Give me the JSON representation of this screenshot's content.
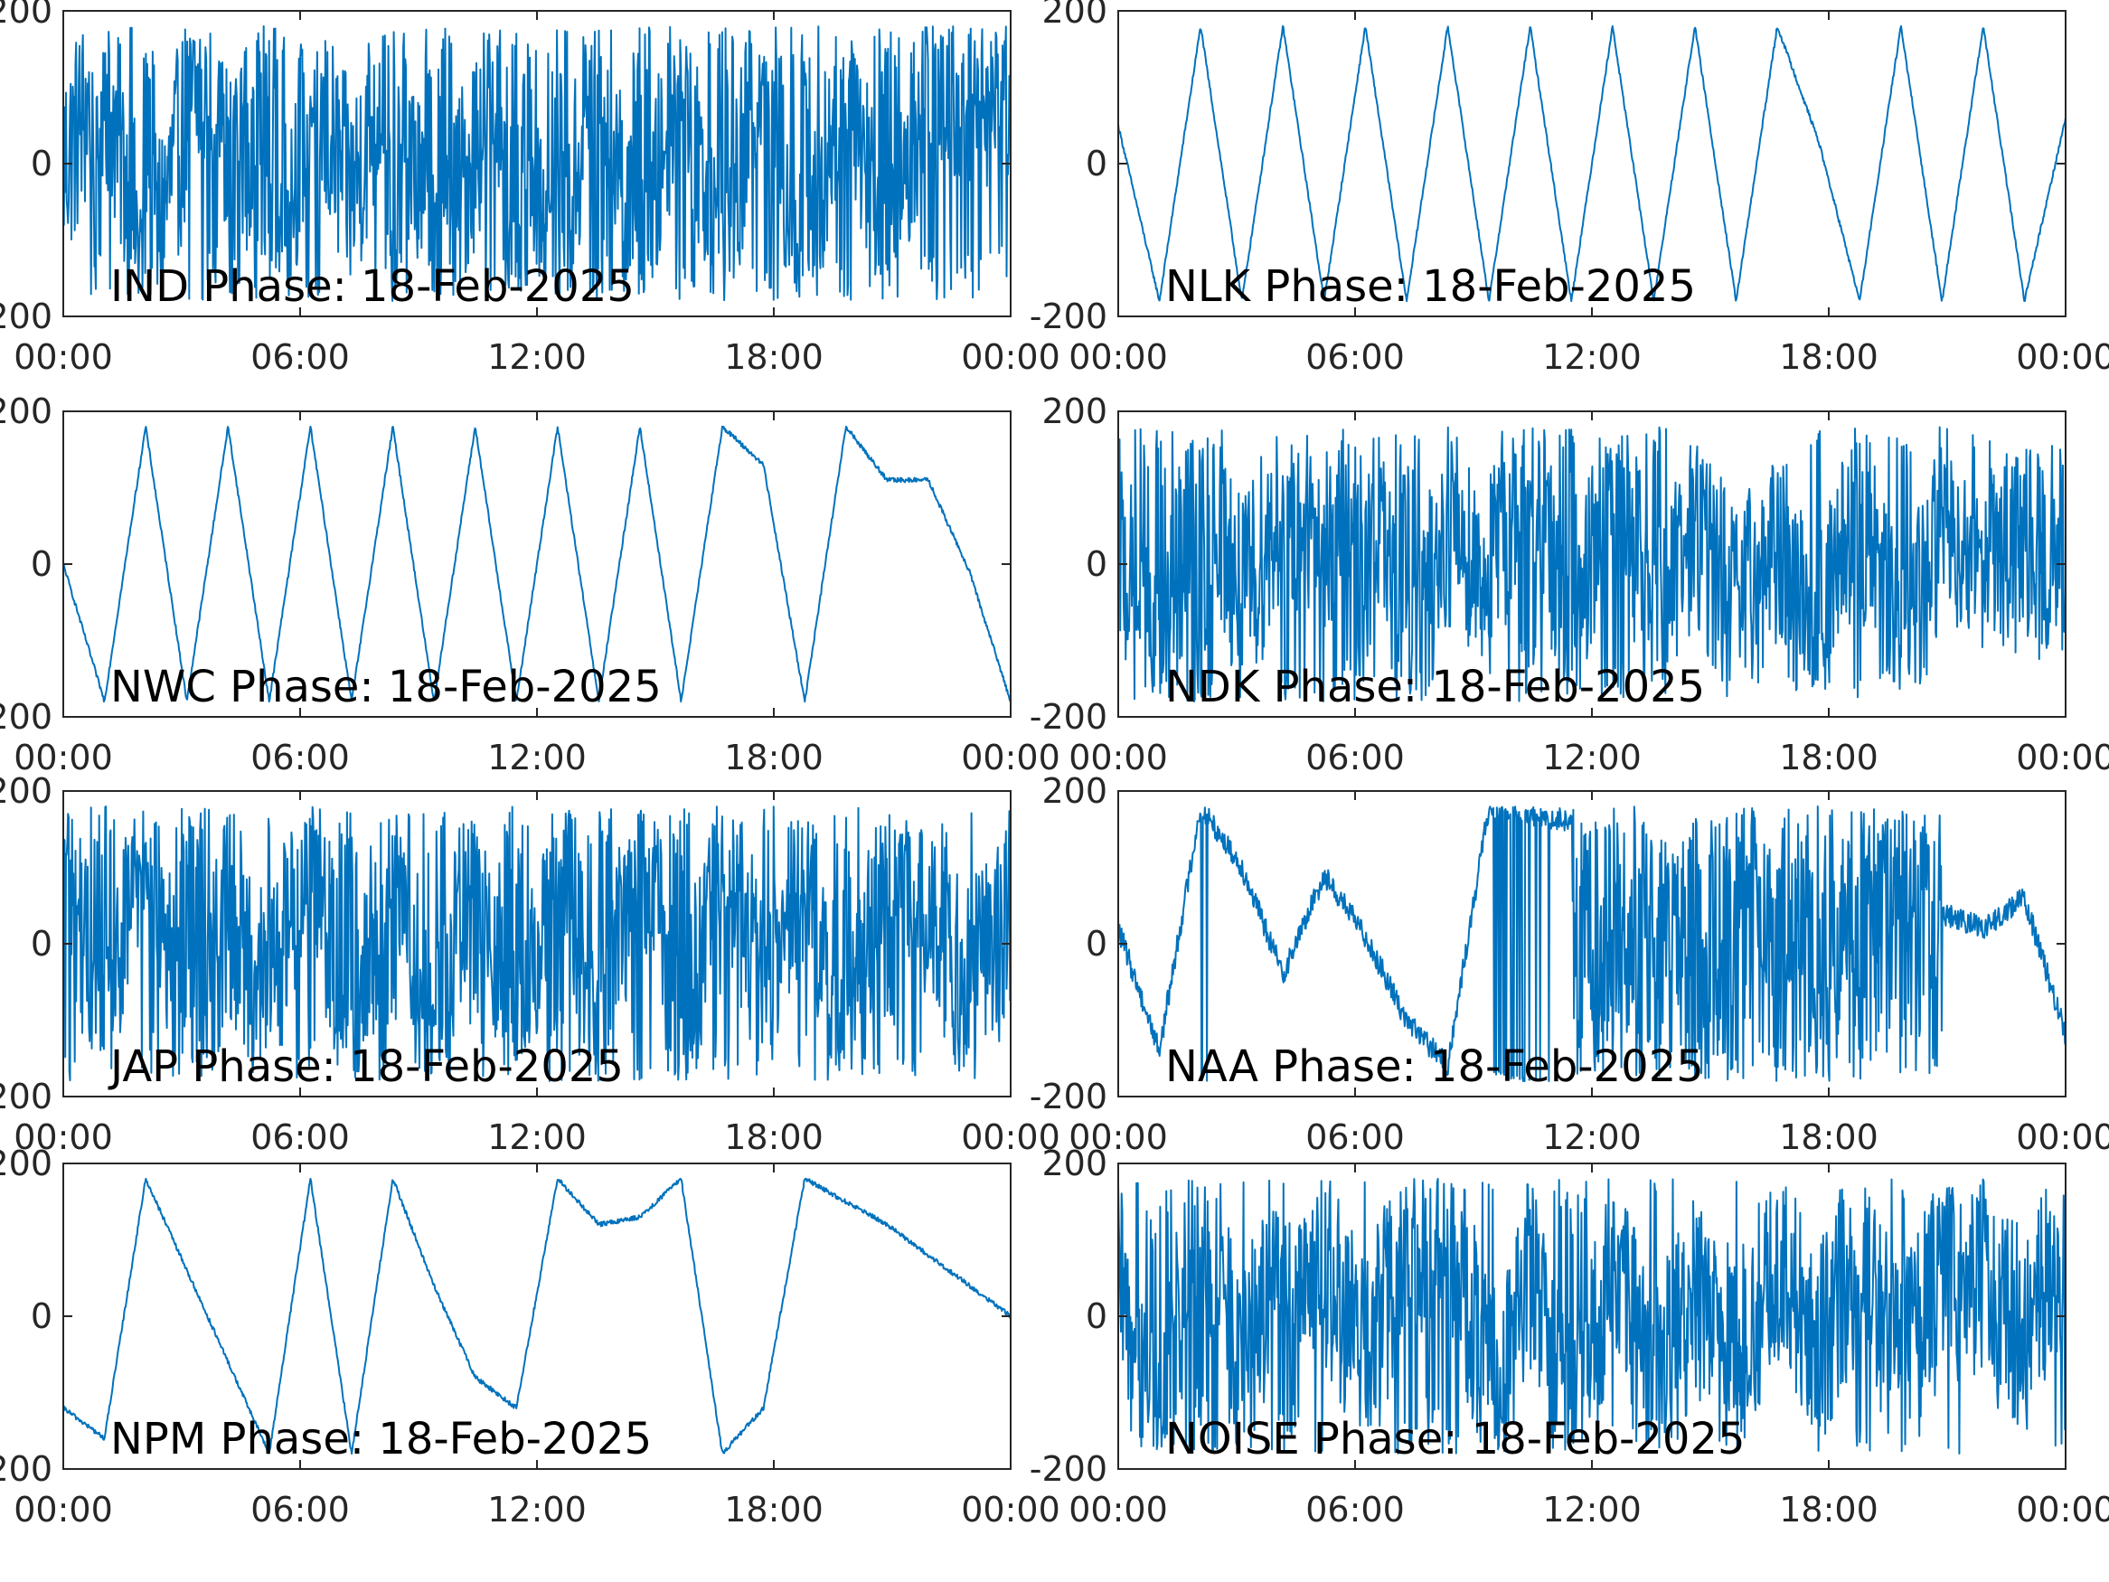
{
  "colors": {
    "line": "#0072BD",
    "axis": "#262626",
    "text": "#000000"
  },
  "chart_data": [
    {
      "type": "line",
      "position": "row1-left",
      "title": "IND Phase: 18-Feb-2025",
      "xlabel": "",
      "ylabel": "",
      "xlim": [
        "00:00",
        "24:00"
      ],
      "ylim": [
        -200,
        200
      ],
      "xticks": [
        "00:00",
        "06:00",
        "12:00",
        "18:00",
        "00:00"
      ],
      "yticks": [
        "-200",
        "0",
        "200"
      ],
      "series": [
        {
          "pattern": "noise-wrap",
          "values": [
            0,
            120,
            -150,
            60,
            170,
            -170,
            90,
            -40,
            160,
            -160,
            30,
            170,
            -170,
            175,
            -175,
            170,
            -170,
            175,
            -175,
            170,
            -170,
            160,
            100,
            120
          ]
        }
      ]
    },
    {
      "type": "line",
      "position": "row1-right",
      "title": "NLK Phase: 18-Feb-2025",
      "xlabel": "",
      "ylabel": "",
      "xlim": [
        "00:00",
        "24:00"
      ],
      "ylim": [
        -200,
        200
      ],
      "xticks": [
        "00:00",
        "06:00",
        "12:00",
        "18:00",
        "00:00"
      ],
      "yticks": [
        "-200",
        "0",
        "200"
      ],
      "series": [
        {
          "pattern": "sawtooth",
          "values": [
            50,
            -180,
            180,
            -180,
            180,
            -180,
            180,
            -180,
            180,
            -180,
            180,
            -180,
            180,
            -180,
            180,
            -180,
            180,
            30,
            -180,
            180,
            -180,
            180,
            -180,
            60
          ]
        }
      ]
    },
    {
      "type": "line",
      "position": "row2-left",
      "title": "NWC Phase: 18-Feb-2025",
      "xlabel": "",
      "ylabel": "",
      "xlim": [
        "00:00",
        "24:00"
      ],
      "ylim": [
        -200,
        200
      ],
      "xticks": [
        "00:00",
        "06:00",
        "12:00",
        "18:00",
        "00:00"
      ],
      "yticks": [
        "-200",
        "0",
        "200"
      ],
      "series": [
        {
          "pattern": "sawtooth",
          "values": [
            0,
            -180,
            180,
            -180,
            180,
            -180,
            180,
            -180,
            180,
            -180,
            180,
            -180,
            180,
            -180,
            180,
            -180,
            180,
            130,
            -180,
            180,
            110,
            110,
            -10,
            -180
          ]
        }
      ]
    },
    {
      "type": "line",
      "position": "row2-right",
      "title": "NDK Phase: 18-Feb-2025",
      "xlabel": "",
      "ylabel": "",
      "xlim": [
        "00:00",
        "24:00"
      ],
      "ylim": [
        -200,
        200
      ],
      "xticks": [
        "00:00",
        "06:00",
        "12:00",
        "18:00",
        "00:00"
      ],
      "yticks": [
        "-200",
        "0",
        "200"
      ],
      "series": [
        {
          "pattern": "noise-wrap",
          "values": [
            30,
            -170,
            170,
            -60,
            90,
            40,
            170,
            -170,
            60,
            -20,
            170,
            -170,
            175,
            -100,
            50,
            -60,
            20,
            -90,
            80,
            -140,
            60,
            30,
            10,
            20
          ]
        }
      ]
    },
    {
      "type": "line",
      "position": "row3-left",
      "title": "JAP Phase: 18-Feb-2025",
      "xlabel": "",
      "ylabel": "",
      "xlim": [
        "00:00",
        "24:00"
      ],
      "ylim": [
        -200,
        200
      ],
      "xticks": [
        "00:00",
        "06:00",
        "12:00",
        "18:00",
        "00:00"
      ],
      "yticks": [
        "-200",
        "0",
        "200"
      ],
      "series": [
        {
          "pattern": "noise-wrap",
          "values": [
            170,
            -170,
            175,
            -175,
            50,
            -80,
            170,
            -170,
            175,
            -175,
            170,
            -170,
            175,
            -175,
            170,
            -170,
            175,
            -100,
            120,
            -170,
            170,
            60,
            -60,
            40
          ]
        }
      ]
    },
    {
      "type": "line",
      "position": "row3-right",
      "title": "NAA Phase: 18-Feb-2025",
      "xlabel": "",
      "ylabel": "",
      "xlim": [
        "00:00",
        "24:00"
      ],
      "ylim": [
        -200,
        200
      ],
      "xticks": [
        "00:00",
        "06:00",
        "12:00",
        "18:00",
        "00:00"
      ],
      "yticks": [
        "-200",
        "0",
        "200"
      ],
      "series": [
        {
          "pattern": "mixed",
          "values": [
            20,
            -140,
            180,
            100,
            -40,
            90,
            10,
            -100,
            -160,
            180,
            170,
            160,
            -180,
            180,
            -170,
            175,
            -175,
            170,
            -170,
            175,
            40,
            20,
            60,
            -120
          ]
        }
      ]
    },
    {
      "type": "line",
      "position": "row4-left",
      "title": "NPM Phase: 18-Feb-2025",
      "xlabel": "",
      "ylabel": "",
      "xlim": [
        "00:00",
        "24:00"
      ],
      "ylim": [
        -200,
        200
      ],
      "xticks": [
        "00:00",
        "06:00",
        "12:00",
        "18:00",
        "00:00"
      ],
      "yticks": [
        "-200",
        "0",
        "200"
      ],
      "series": [
        {
          "pattern": "sawtooth",
          "values": [
            -120,
            -160,
            180,
            60,
            -60,
            -180,
            180,
            -180,
            180,
            40,
            -80,
            -120,
            180,
            120,
            130,
            180,
            -180,
            -120,
            180,
            150,
            120,
            80,
            40,
            0
          ]
        }
      ]
    },
    {
      "type": "line",
      "position": "row4-right",
      "title": "NOISE Phase: 18-Feb-2025",
      "xlabel": "",
      "ylabel": "",
      "xlim": [
        "00:00",
        "24:00"
      ],
      "ylim": [
        -200,
        200
      ],
      "xticks": [
        "00:00",
        "06:00",
        "12:00",
        "18:00",
        "00:00"
      ],
      "yticks": [
        "-200",
        "0",
        "200"
      ],
      "series": [
        {
          "pattern": "noise-wrap",
          "values": [
            40,
            -170,
            170,
            -90,
            120,
            60,
            -60,
            100,
            140,
            -100,
            60,
            -140,
            80,
            -100,
            20,
            -60,
            80,
            -40,
            90,
            -80,
            60,
            40,
            -20,
            80
          ]
        }
      ]
    }
  ]
}
